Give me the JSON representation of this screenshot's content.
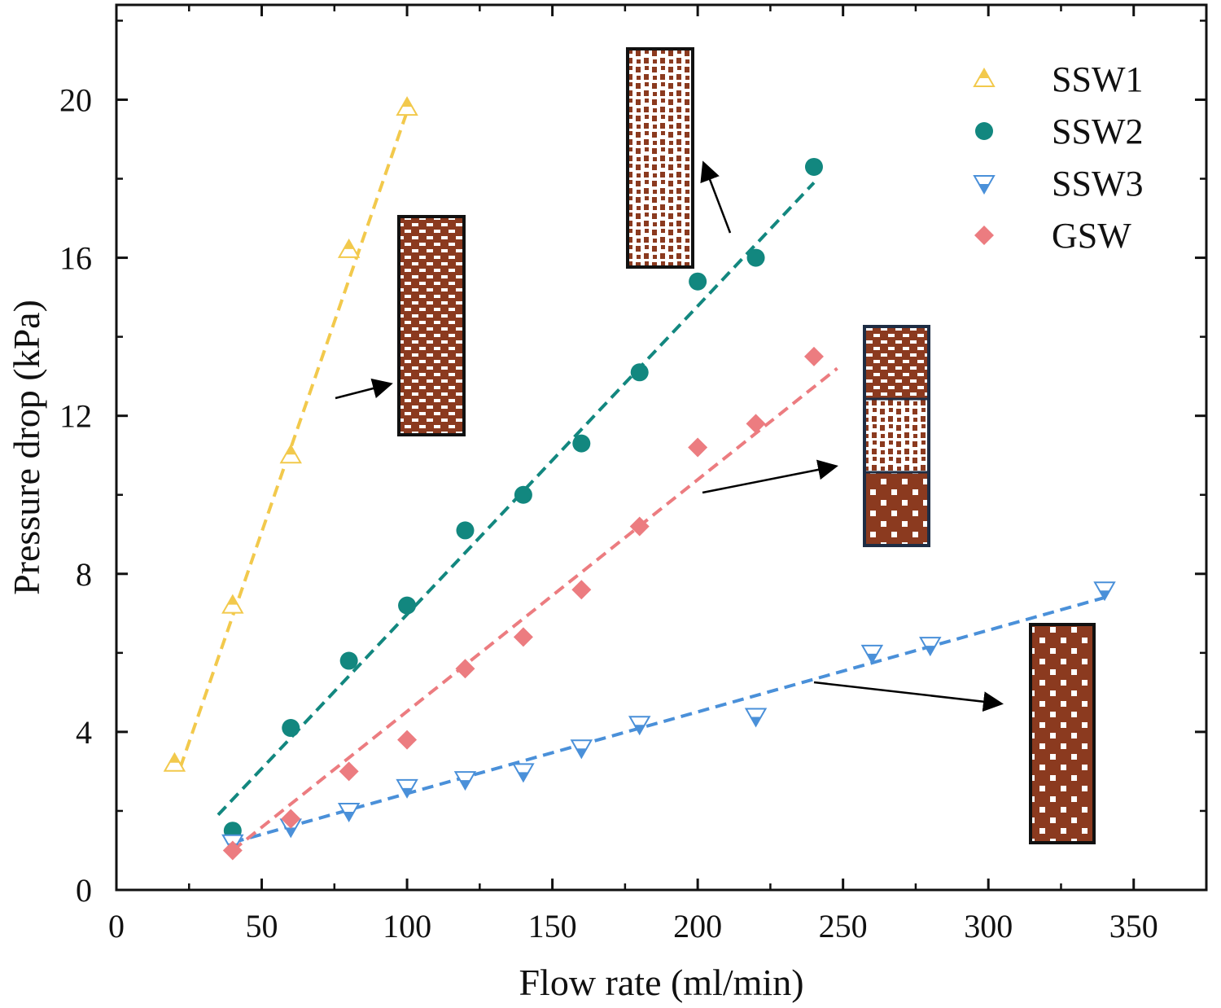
{
  "chart_data": {
    "type": "scatter",
    "xlabel": "Flow rate (ml/min)",
    "ylabel": "Pressure drop (kPa)",
    "xlim": [
      0,
      375
    ],
    "ylim": [
      0,
      22.4
    ],
    "xticks": [
      0,
      50,
      100,
      150,
      200,
      250,
      300,
      350
    ],
    "yticks": [
      0,
      4,
      8,
      12,
      16,
      20
    ],
    "legend_position": "top-right",
    "series": [
      {
        "name": "SSW1",
        "marker": "triangle-up",
        "color": "#F2C94C",
        "x": [
          20,
          40,
          60,
          80,
          100
        ],
        "y": [
          3.2,
          7.2,
          11.0,
          16.2,
          19.8
        ],
        "fit": {
          "x": [
            22,
            100
          ],
          "y": [
            3.1,
            19.7
          ]
        }
      },
      {
        "name": "SSW2",
        "marker": "circle",
        "color": "#12877F",
        "x": [
          40,
          60,
          80,
          100,
          120,
          140,
          160,
          180,
          200,
          220,
          240
        ],
        "y": [
          1.5,
          4.1,
          5.8,
          7.2,
          9.1,
          10.0,
          11.3,
          13.1,
          15.4,
          16.0,
          18.3
        ],
        "fit": {
          "x": [
            35,
            240
          ],
          "y": [
            1.9,
            17.9
          ]
        }
      },
      {
        "name": "SSW3",
        "marker": "triangle-down",
        "color": "#4A90D9",
        "x": [
          40,
          60,
          80,
          100,
          120,
          140,
          160,
          180,
          220,
          260,
          280,
          340
        ],
        "y": [
          1.2,
          1.6,
          2.0,
          2.6,
          2.8,
          3.0,
          3.6,
          4.2,
          4.4,
          6.0,
          6.2,
          7.6
        ],
        "fit": {
          "x": [
            40,
            340
          ],
          "y": [
            1.2,
            7.4
          ]
        }
      },
      {
        "name": "GSW",
        "marker": "diamond",
        "color": "#EC7C80",
        "x": [
          40,
          60,
          80,
          100,
          120,
          140,
          160,
          180,
          200,
          220,
          240
        ],
        "y": [
          1.0,
          1.8,
          3.0,
          3.8,
          5.6,
          6.4,
          7.6,
          9.2,
          11.2,
          11.8,
          13.5
        ],
        "fit": {
          "x": [
            40,
            248
          ],
          "y": [
            1.0,
            13.2
          ]
        }
      }
    ],
    "insets": [
      {
        "name": "ssw1-structure",
        "pattern": "dense",
        "target_series": "SSW1"
      },
      {
        "name": "ssw2-structure",
        "pattern": "sparse",
        "target_series": "SSW2"
      },
      {
        "name": "gsw-structure",
        "pattern": "graded",
        "target_series": "GSW"
      },
      {
        "name": "ssw3-structure",
        "pattern": "coarse",
        "target_series": "SSW3"
      }
    ]
  }
}
